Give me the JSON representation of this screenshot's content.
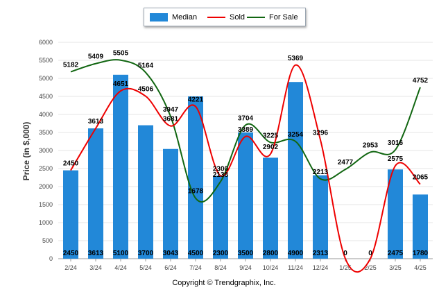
{
  "legend": [
    {
      "label": "Median",
      "color": "#2288d8"
    },
    {
      "label": "Sold",
      "color": "#ee0000"
    },
    {
      "label": "For Sale",
      "color": "#116611"
    }
  ],
  "copyright": "Copyright © Trendgraphix, Inc.",
  "chart_data": {
    "type": "bar",
    "categories": [
      "2/24",
      "3/24",
      "4/24",
      "5/24",
      "6/24",
      "7/24",
      "8/24",
      "9/24",
      "10/24",
      "11/24",
      "12/24",
      "1/25",
      "2/25",
      "3/25",
      "4/25"
    ],
    "ylabel": "Price (in $,000)",
    "xlabel": "",
    "ylim": [
      0,
      6000
    ],
    "yticks": [
      0,
      500,
      1000,
      1500,
      2000,
      2500,
      3000,
      3500,
      4000,
      4500,
      5000,
      5500,
      6000
    ],
    "grid": true,
    "legend_position": "top-center",
    "series": [
      {
        "name": "Median",
        "kind": "bar",
        "color": "#2288d8",
        "values": [
          2450,
          3613,
          5100,
          3700,
          3043,
          4500,
          2300,
          3500,
          2800,
          4900,
          2313,
          0,
          0,
          2475,
          1780
        ]
      },
      {
        "name": "Sold",
        "kind": "line",
        "color": "#ee0000",
        "values": [
          2450,
          3613,
          4651,
          4506,
          3681,
          4221,
          2300,
          3389,
          2902,
          5369,
          3296,
          0,
          0,
          2575,
          2065
        ],
        "labels": [
          "2450",
          "3613",
          "4651",
          "4506",
          "3681",
          "4221",
          "2300",
          "3389",
          "2902",
          "5369",
          "3296",
          "",
          "",
          "2575",
          "2065"
        ]
      },
      {
        "name": "For Sale",
        "kind": "line",
        "color": "#116611",
        "values": [
          5182,
          5409,
          5505,
          5164,
          3947,
          1678,
          2138,
          3704,
          3225,
          3254,
          2213,
          2477,
          2953,
          3016,
          4752
        ],
        "labels": [
          "5182",
          "5409",
          "5505",
          "5164",
          "3947",
          "1678",
          "2138",
          "3704",
          "3225",
          "3254",
          "2213",
          "2477",
          "2953",
          "3016",
          "4752"
        ]
      }
    ]
  }
}
